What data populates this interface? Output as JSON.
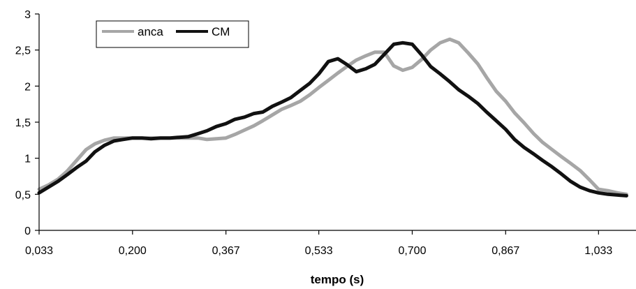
{
  "chart_data": {
    "type": "line",
    "title": "",
    "xlabel": "tempo (s)",
    "ylabel": "",
    "xlim": [
      0.033,
      1.1
    ],
    "ylim": [
      0,
      3
    ],
    "x_ticks": [
      0.033,
      0.2,
      0.367,
      0.533,
      0.7,
      0.867,
      1.033
    ],
    "x_tick_labels": [
      "0,033",
      "0,200",
      "0,367",
      "0,533",
      "0,700",
      "0,867",
      "1,033"
    ],
    "y_ticks": [
      0,
      0.5,
      1,
      1.5,
      2,
      2.5,
      3
    ],
    "y_tick_labels": [
      "0",
      "0,5",
      "1",
      "1,5",
      "2",
      "2,5",
      "3"
    ],
    "grid": false,
    "legend_position": "top-left",
    "series": [
      {
        "name": "anca",
        "color": "#a6a6a6",
        "x": [
          0.033,
          0.05,
          0.067,
          0.083,
          0.1,
          0.117,
          0.133,
          0.15,
          0.167,
          0.183,
          0.2,
          0.217,
          0.233,
          0.25,
          0.267,
          0.283,
          0.3,
          0.317,
          0.333,
          0.35,
          0.367,
          0.383,
          0.4,
          0.417,
          0.433,
          0.45,
          0.467,
          0.483,
          0.5,
          0.517,
          0.533,
          0.55,
          0.567,
          0.583,
          0.6,
          0.617,
          0.633,
          0.65,
          0.667,
          0.683,
          0.7,
          0.717,
          0.733,
          0.75,
          0.767,
          0.783,
          0.8,
          0.817,
          0.833,
          0.85,
          0.867,
          0.883,
          0.9,
          0.917,
          0.933,
          0.95,
          0.967,
          0.983,
          1.0,
          1.017,
          1.033,
          1.05,
          1.067,
          1.083
        ],
        "values": [
          0.57,
          0.63,
          0.71,
          0.82,
          0.97,
          1.12,
          1.2,
          1.25,
          1.28,
          1.28,
          1.28,
          1.28,
          1.28,
          1.28,
          1.28,
          1.28,
          1.28,
          1.28,
          1.26,
          1.27,
          1.28,
          1.33,
          1.39,
          1.45,
          1.52,
          1.6,
          1.68,
          1.73,
          1.79,
          1.88,
          1.98,
          2.08,
          2.18,
          2.27,
          2.36,
          2.42,
          2.47,
          2.47,
          2.28,
          2.22,
          2.26,
          2.37,
          2.5,
          2.6,
          2.65,
          2.6,
          2.46,
          2.31,
          2.12,
          1.93,
          1.79,
          1.63,
          1.49,
          1.34,
          1.22,
          1.12,
          1.02,
          0.93,
          0.83,
          0.7,
          0.57,
          0.55,
          0.52,
          0.5
        ]
      },
      {
        "name": "CM",
        "color": "#111111",
        "x": [
          0.033,
          0.05,
          0.067,
          0.083,
          0.1,
          0.117,
          0.133,
          0.15,
          0.167,
          0.183,
          0.2,
          0.217,
          0.233,
          0.25,
          0.267,
          0.283,
          0.3,
          0.317,
          0.333,
          0.35,
          0.367,
          0.383,
          0.4,
          0.417,
          0.433,
          0.45,
          0.467,
          0.483,
          0.5,
          0.517,
          0.533,
          0.55,
          0.567,
          0.583,
          0.6,
          0.617,
          0.633,
          0.65,
          0.667,
          0.683,
          0.7,
          0.717,
          0.733,
          0.75,
          0.767,
          0.783,
          0.8,
          0.817,
          0.833,
          0.85,
          0.867,
          0.883,
          0.9,
          0.917,
          0.933,
          0.95,
          0.967,
          0.983,
          1.0,
          1.017,
          1.033,
          1.05,
          1.067,
          1.083
        ],
        "values": [
          0.52,
          0.6,
          0.68,
          0.77,
          0.87,
          0.96,
          1.09,
          1.18,
          1.24,
          1.26,
          1.28,
          1.28,
          1.27,
          1.28,
          1.28,
          1.29,
          1.3,
          1.34,
          1.38,
          1.44,
          1.48,
          1.54,
          1.57,
          1.62,
          1.64,
          1.72,
          1.78,
          1.84,
          1.94,
          2.04,
          2.17,
          2.34,
          2.38,
          2.3,
          2.2,
          2.24,
          2.3,
          2.44,
          2.58,
          2.6,
          2.58,
          2.43,
          2.27,
          2.17,
          2.06,
          1.95,
          1.86,
          1.76,
          1.64,
          1.52,
          1.4,
          1.26,
          1.15,
          1.06,
          0.97,
          0.88,
          0.78,
          0.68,
          0.6,
          0.55,
          0.52,
          0.5,
          0.49,
          0.48
        ]
      }
    ]
  }
}
